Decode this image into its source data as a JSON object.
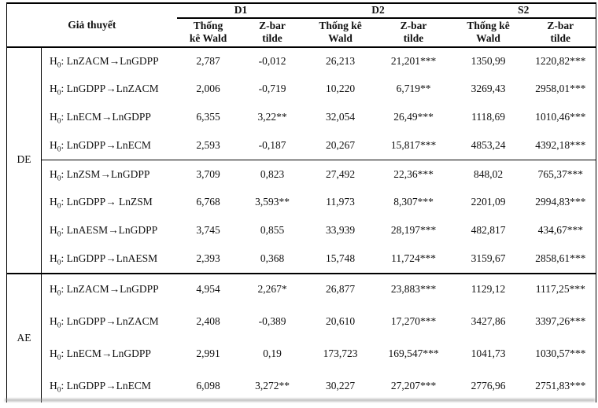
{
  "table": {
    "corner_header": "Giả thuyết",
    "groups": [
      {
        "label": "D1",
        "sub": [
          "Thống\nkê Wald",
          "Z-bar\ntilde"
        ]
      },
      {
        "label": "D2",
        "sub": [
          "Thống kê\nWald",
          "Z-bar\ntilde"
        ]
      },
      {
        "label": "S2",
        "sub": [
          "Thống kê\nWald",
          "Z-bar\ntilde"
        ]
      }
    ],
    "sections": [
      {
        "label": "DE",
        "rows": [
          {
            "prefix": "H",
            "sub": "0",
            "statement": ": LnZACM→LnGDPP",
            "rule_above": false,
            "values": [
              "2,787",
              "-0,012",
              "26,213",
              "21,201***",
              "1350,99",
              "1220,82***"
            ]
          },
          {
            "prefix": "H",
            "sub": "0",
            "statement": ": LnGDPP→LnZACM",
            "rule_above": false,
            "values": [
              "2,006",
              "-0,719",
              "10,220",
              "6,719**",
              "3269,43",
              "2958,01***"
            ]
          },
          {
            "prefix": "H",
            "sub": "0",
            "statement": ": LnECM→LnGDPP",
            "rule_above": false,
            "values": [
              "6,355",
              "3,22**",
              "32,054",
              "26,49***",
              "1118,69",
              "1010,46***"
            ]
          },
          {
            "prefix": "H",
            "sub": "0",
            "statement": ": LnGDPP→LnECM",
            "rule_above": false,
            "values": [
              "2,593",
              "-0,187",
              "20,267",
              "15,817***",
              "4853,24",
              "4392,18***"
            ]
          },
          {
            "prefix": "H",
            "sub": "0",
            "statement": ": LnZSM→LnGDPP",
            "rule_above": true,
            "values": [
              "3,709",
              "0,823",
              "27,492",
              "22,36***",
              "848,02",
              "765,37***"
            ]
          },
          {
            "prefix": "H",
            "sub": "0",
            "statement": ": LnGDPP→ LnZSM",
            "rule_above": false,
            "values": [
              "6,768",
              "3,593**",
              "11,973",
              "8,307***",
              "2201,09",
              "2994,83***"
            ]
          },
          {
            "prefix": "H",
            "sub": "0",
            "statement": ": LnAESM→LnGDPP",
            "rule_above": false,
            "values": [
              "3,745",
              "0,855",
              "33,939",
              "28,197***",
              "482,817",
              "434,67***"
            ]
          },
          {
            "prefix": "H",
            "sub": "0",
            "statement": ": LnGDPP→LnAESM",
            "rule_above": false,
            "values": [
              "2,393",
              "0,368",
              "15,748",
              "11,724***",
              "3159,67",
              "2858,61***"
            ]
          }
        ]
      },
      {
        "label": "AE",
        "rows": [
          {
            "prefix": "H",
            "sub": "0",
            "statement": ": LnZACM→LnGDPP",
            "rule_above": false,
            "values": [
              "4,954",
              "2,267*",
              "26,877",
              "23,883***",
              "1129,12",
              "1117,25***"
            ]
          },
          {
            "prefix": "H",
            "sub": "0",
            "statement": ": LnGDPP→LnZACM",
            "rule_above": false,
            "values": [
              "2,408",
              "-0,389",
              "20,610",
              "17,270***",
              "3427,86",
              "3397,26***"
            ]
          },
          {
            "prefix": "H",
            "sub": "0",
            "statement": ": LnECM→LnGDPP",
            "rule_above": false,
            "values": [
              "2,991",
              "0,19",
              "173,723",
              "169,547***",
              "1041,73",
              "1030,57***"
            ]
          },
          {
            "prefix": "H",
            "sub": "0",
            "statement": ": LnGDPP→LnECM",
            "rule_above": false,
            "values": [
              "6,098",
              "3,272**",
              "30,227",
              "27,207***",
              "2776,96",
              "2751,83***"
            ]
          }
        ]
      }
    ]
  }
}
